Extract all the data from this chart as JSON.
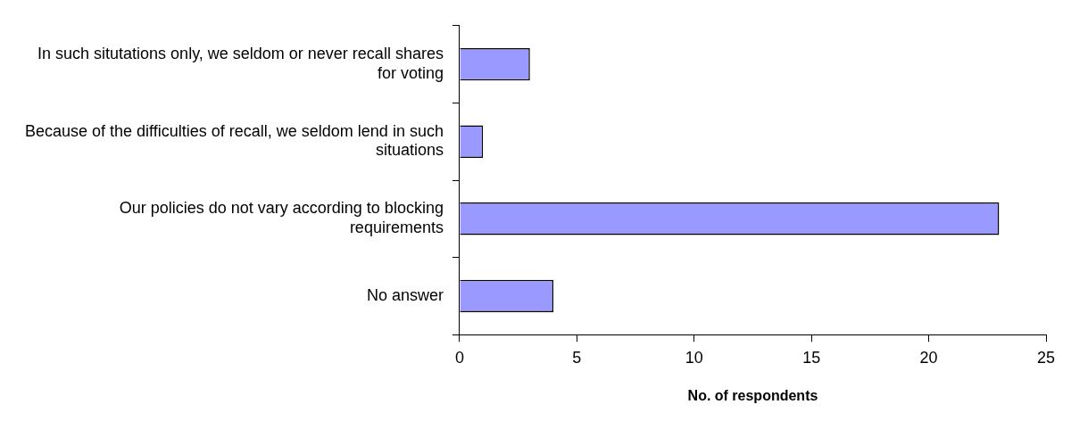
{
  "chart_data": {
    "type": "bar",
    "orientation": "horizontal",
    "xlabel": "No. of respondents",
    "categories": [
      "In such situtations only, we seldom or never recall shares for voting",
      "Because of the difficulties of recall, we seldom lend in such situations",
      "Our policies do not vary according to blocking requirements",
      "No answer"
    ],
    "values": [
      3,
      1,
      23,
      4
    ],
    "color": "#9999ff",
    "xlim": [
      0,
      25
    ],
    "xticks": [
      0,
      5,
      10,
      15,
      20,
      25
    ],
    "grid": false,
    "legend": false
  }
}
